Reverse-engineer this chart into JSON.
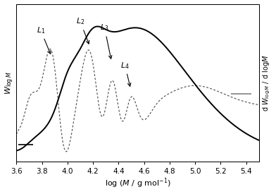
{
  "xlim": [
    3.6,
    5.5
  ],
  "xticks": [
    3.6,
    3.8,
    4.0,
    4.2,
    4.4,
    4.6,
    4.8,
    5.0,
    5.2,
    5.4
  ],
  "solid_line_color": "#000000",
  "dotted_line_color": "#555555",
  "background_color": "#ffffff",
  "annotations": [
    {
      "label": "$L_1$",
      "xt": 3.79,
      "yt": 0.93,
      "xa": 3.875,
      "ya": 0.76
    },
    {
      "label": "$L_2$",
      "xt": 4.1,
      "yt": 1.0,
      "xa": 4.175,
      "ya": 0.84
    },
    {
      "label": "$L_3$",
      "xt": 4.29,
      "yt": 0.95,
      "xa": 4.345,
      "ya": 0.72
    },
    {
      "label": "$L_4$",
      "xt": 4.45,
      "yt": 0.65,
      "xa": 4.495,
      "ya": 0.5
    }
  ]
}
